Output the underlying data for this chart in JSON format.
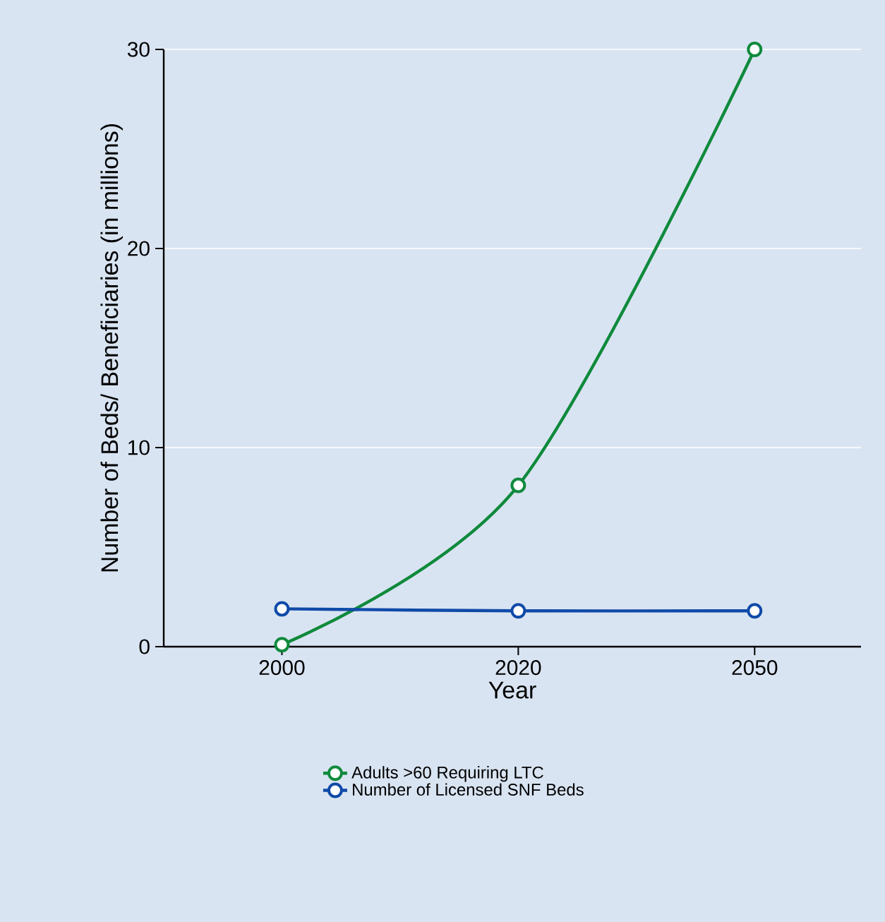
{
  "chart_data": {
    "type": "line",
    "xlabel": "Year",
    "ylabel": "Number of Beds/ Beneficiaries (in millions)",
    "categories": [
      "2000",
      "2020",
      "2050"
    ],
    "series": [
      {
        "name": "Adults >60 Requiring LTC",
        "color": "#0f8a3c",
        "values": [
          0.1,
          8.1,
          30
        ]
      },
      {
        "name": "Number of Licensed SNF Beds",
        "color": "#0f4aa8",
        "values": [
          1.9,
          1.8,
          1.8
        ]
      }
    ],
    "ylim": [
      0,
      30
    ],
    "yticks": [
      0,
      10,
      20,
      30
    ],
    "grid": "y",
    "legend": "bottom",
    "marker": "circle",
    "line_style": "solid"
  }
}
